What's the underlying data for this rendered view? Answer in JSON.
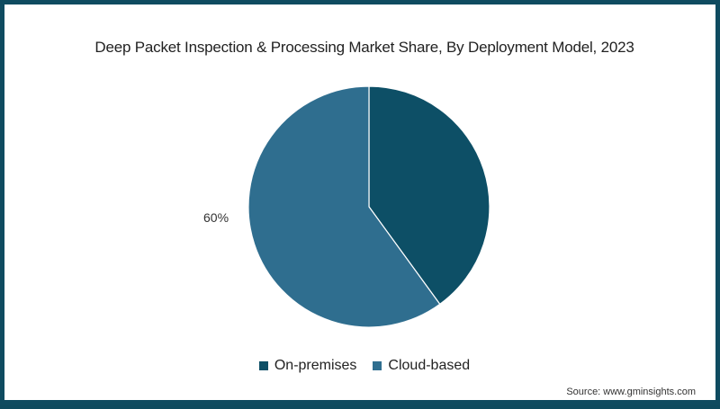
{
  "chart_data": {
    "type": "pie",
    "title": "Deep Packet Inspection & Processing Market Share, By Deployment Model, 2023",
    "categories": [
      "On-premises",
      "Cloud-based"
    ],
    "values": [
      40,
      60
    ],
    "colors": [
      "#0d4f66",
      "#2f6e8f"
    ],
    "data_labels": [
      {
        "category": "Cloud-based",
        "text": "60%"
      }
    ],
    "legend_position": "bottom",
    "source": "Source: www.gminsights.com"
  },
  "header": {
    "title": "Deep Packet Inspection & Processing Market Share, By Deployment Model, 2023"
  },
  "labels": {
    "cloud_pct": "60%"
  },
  "legend": {
    "items": [
      {
        "label": "On-premises",
        "color": "#0d4f66"
      },
      {
        "label": "Cloud-based",
        "color": "#2f6e8f"
      }
    ]
  },
  "footer": {
    "source": "Source: www.gminsights.com"
  },
  "colors": {
    "frame": "#0f4b60",
    "on_premises": "#0d4f66",
    "cloud_based": "#2f6e8f"
  }
}
